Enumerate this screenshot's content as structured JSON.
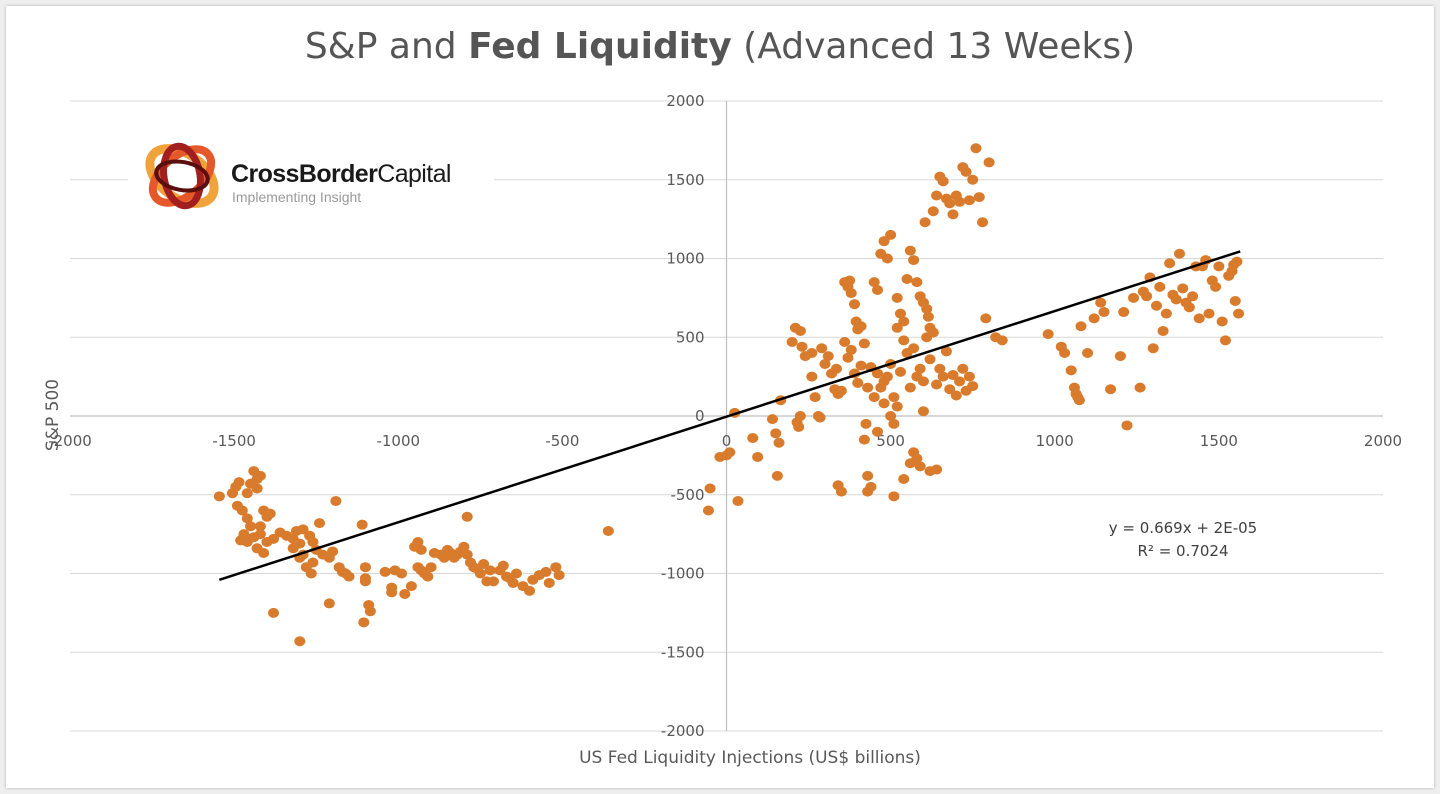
{
  "chart_data": {
    "type": "scatter",
    "title_prefix": "S&P and ",
    "title_bold": "Fed Liquidity",
    "title_suffix": " (Advanced 13 Weeks)",
    "xlabel": "US Fed Liquidity Injections (US$ billions)",
    "ylabel": "S&P 500",
    "xlim": [
      -2000,
      2000
    ],
    "ylim": [
      -2000,
      2000
    ],
    "x_ticks": [
      "-2000",
      "-1500",
      "-1000",
      "-500",
      "0",
      "500",
      "1000",
      "1500",
      "2000"
    ],
    "y_ticks": [
      "2000",
      "1500",
      "1000",
      "500",
      "0",
      "-500",
      "-1000",
      "-1500",
      "-2000"
    ],
    "grid": true,
    "point_color": "#d97b2d",
    "trendline": {
      "x": [
        -1545,
        1565
      ],
      "y": [
        -1040,
        1045
      ],
      "equation": "y = 0.669x + 2E-05",
      "r_squared": "R² = 0.7024"
    },
    "points": [
      [
        -1545,
        -510
      ],
      [
        -1505,
        -490
      ],
      [
        -1495,
        -450
      ],
      [
        -1485,
        -420
      ],
      [
        -1490,
        -570
      ],
      [
        -1475,
        -600
      ],
      [
        -1460,
        -490
      ],
      [
        -1450,
        -430
      ],
      [
        -1430,
        -400
      ],
      [
        -1420,
        -380
      ],
      [
        -1440,
        -350
      ],
      [
        -1430,
        -460
      ],
      [
        -1460,
        -650
      ],
      [
        -1450,
        -700
      ],
      [
        -1470,
        -750
      ],
      [
        -1480,
        -790
      ],
      [
        -1460,
        -800
      ],
      [
        -1440,
        -770
      ],
      [
        -1420,
        -750
      ],
      [
        -1430,
        -840
      ],
      [
        -1410,
        -870
      ],
      [
        -1400,
        -800
      ],
      [
        -1380,
        -780
      ],
      [
        -1400,
        -640
      ],
      [
        -1410,
        -600
      ],
      [
        -1390,
        -620
      ],
      [
        -1420,
        -700
      ],
      [
        -1360,
        -740
      ],
      [
        -1340,
        -760
      ],
      [
        -1320,
        -780
      ],
      [
        -1310,
        -730
      ],
      [
        -1300,
        -810
      ],
      [
        -1320,
        -840
      ],
      [
        -1290,
        -880
      ],
      [
        -1300,
        -900
      ],
      [
        -1290,
        -720
      ],
      [
        -1270,
        -760
      ],
      [
        -1260,
        -800
      ],
      [
        -1250,
        -850
      ],
      [
        -1260,
        -930
      ],
      [
        -1265,
        -1000
      ],
      [
        -1280,
        -960
      ],
      [
        -1240,
        -680
      ],
      [
        -1230,
        -880
      ],
      [
        -1210,
        -900
      ],
      [
        -1200,
        -860
      ],
      [
        -1190,
        -540
      ],
      [
        -1180,
        -960
      ],
      [
        -1170,
        -990
      ],
      [
        -1160,
        -1000
      ],
      [
        -1150,
        -1020
      ],
      [
        -1110,
        -690
      ],
      [
        -1100,
        -960
      ],
      [
        -1100,
        -1030
      ],
      [
        -1100,
        -1050
      ],
      [
        -1090,
        -1200
      ],
      [
        -1085,
        -1240
      ],
      [
        -1105,
        -1310
      ],
      [
        -1040,
        -990
      ],
      [
        -1020,
        -1090
      ],
      [
        -1020,
        -1120
      ],
      [
        -1010,
        -980
      ],
      [
        -990,
        -1000
      ],
      [
        -980,
        -1130
      ],
      [
        -960,
        -1080
      ],
      [
        -950,
        -830
      ],
      [
        -940,
        -800
      ],
      [
        -930,
        -850
      ],
      [
        -940,
        -960
      ],
      [
        -930,
        -980
      ],
      [
        -920,
        -1000
      ],
      [
        -910,
        -1020
      ],
      [
        -900,
        -960
      ],
      [
        -890,
        -870
      ],
      [
        -870,
        -880
      ],
      [
        -860,
        -900
      ],
      [
        -850,
        -850
      ],
      [
        -840,
        -870
      ],
      [
        -830,
        -900
      ],
      [
        -820,
        -880
      ],
      [
        -810,
        -860
      ],
      [
        -800,
        -830
      ],
      [
        -790,
        -880
      ],
      [
        -780,
        -930
      ],
      [
        -770,
        -960
      ],
      [
        -760,
        -970
      ],
      [
        -750,
        -1000
      ],
      [
        -740,
        -940
      ],
      [
        -730,
        -1050
      ],
      [
        -720,
        -980
      ],
      [
        -710,
        -1050
      ],
      [
        -690,
        -980
      ],
      [
        -680,
        -950
      ],
      [
        -670,
        -1020
      ],
      [
        -660,
        -1030
      ],
      [
        -650,
        -1060
      ],
      [
        -640,
        -1000
      ],
      [
        -620,
        -1080
      ],
      [
        -600,
        -1110
      ],
      [
        -590,
        -1040
      ],
      [
        -570,
        -1010
      ],
      [
        -550,
        -990
      ],
      [
        -540,
        -1060
      ],
      [
        -520,
        -960
      ],
      [
        -510,
        -1010
      ],
      [
        -790,
        -640
      ],
      [
        -1210,
        -1190
      ],
      [
        -1380,
        -1250
      ],
      [
        -1300,
        -1430
      ],
      [
        -360,
        -730
      ],
      [
        -55,
        -600
      ],
      [
        -50,
        -460
      ],
      [
        -20,
        -260
      ],
      [
        0,
        -250
      ],
      [
        10,
        -230
      ],
      [
        25,
        20
      ],
      [
        35,
        -540
      ],
      [
        80,
        -140
      ],
      [
        95,
        -260
      ],
      [
        140,
        -20
      ],
      [
        150,
        -110
      ],
      [
        155,
        -380
      ],
      [
        160,
        -170
      ],
      [
        165,
        100
      ],
      [
        200,
        470
      ],
      [
        210,
        560
      ],
      [
        215,
        -40
      ],
      [
        220,
        -70
      ],
      [
        225,
        540
      ],
      [
        225,
        0
      ],
      [
        230,
        440
      ],
      [
        240,
        380
      ],
      [
        260,
        400
      ],
      [
        260,
        250
      ],
      [
        270,
        120
      ],
      [
        280,
        0
      ],
      [
        285,
        -10
      ],
      [
        290,
        430
      ],
      [
        300,
        330
      ],
      [
        310,
        380
      ],
      [
        320,
        270
      ],
      [
        330,
        170
      ],
      [
        340,
        140
      ],
      [
        350,
        160
      ],
      [
        360,
        470
      ],
      [
        370,
        370
      ],
      [
        380,
        420
      ],
      [
        390,
        270
      ],
      [
        400,
        210
      ],
      [
        410,
        320
      ],
      [
        420,
        460
      ],
      [
        430,
        180
      ],
      [
        440,
        310
      ],
      [
        450,
        120
      ],
      [
        460,
        270
      ],
      [
        470,
        180
      ],
      [
        480,
        220
      ],
      [
        490,
        250
      ],
      [
        500,
        330
      ],
      [
        510,
        120
      ],
      [
        520,
        560
      ],
      [
        530,
        280
      ],
      [
        540,
        480
      ],
      [
        550,
        400
      ],
      [
        560,
        180
      ],
      [
        570,
        430
      ],
      [
        580,
        250
      ],
      [
        590,
        300
      ],
      [
        600,
        220
      ],
      [
        610,
        500
      ],
      [
        620,
        360
      ],
      [
        630,
        530
      ],
      [
        640,
        200
      ],
      [
        650,
        300
      ],
      [
        660,
        250
      ],
      [
        670,
        410
      ],
      [
        680,
        170
      ],
      [
        690,
        260
      ],
      [
        700,
        130
      ],
      [
        710,
        220
      ],
      [
        720,
        300
      ],
      [
        730,
        160
      ],
      [
        740,
        250
      ],
      [
        750,
        190
      ],
      [
        335,
        300
      ],
      [
        340,
        -440
      ],
      [
        350,
        -480
      ],
      [
        360,
        850
      ],
      [
        370,
        820
      ],
      [
        375,
        860
      ],
      [
        380,
        780
      ],
      [
        390,
        710
      ],
      [
        395,
        600
      ],
      [
        400,
        550
      ],
      [
        410,
        570
      ],
      [
        420,
        -150
      ],
      [
        425,
        -50
      ],
      [
        430,
        -380
      ],
      [
        440,
        -450
      ],
      [
        450,
        850
      ],
      [
        460,
        800
      ],
      [
        470,
        1030
      ],
      [
        480,
        1110
      ],
      [
        490,
        1000
      ],
      [
        500,
        1150
      ],
      [
        510,
        -510
      ],
      [
        520,
        750
      ],
      [
        530,
        650
      ],
      [
        540,
        600
      ],
      [
        550,
        870
      ],
      [
        560,
        1050
      ],
      [
        570,
        990
      ],
      [
        580,
        850
      ],
      [
        590,
        760
      ],
      [
        600,
        720
      ],
      [
        605,
        1230
      ],
      [
        610,
        680
      ],
      [
        615,
        630
      ],
      [
        620,
        560
      ],
      [
        630,
        1300
      ],
      [
        640,
        1400
      ],
      [
        650,
        1520
      ],
      [
        660,
        1490
      ],
      [
        670,
        1380
      ],
      [
        680,
        1350
      ],
      [
        690,
        1280
      ],
      [
        700,
        1400
      ],
      [
        710,
        1360
      ],
      [
        720,
        1580
      ],
      [
        730,
        1550
      ],
      [
        740,
        1370
      ],
      [
        750,
        1500
      ],
      [
        760,
        1700
      ],
      [
        770,
        1390
      ],
      [
        780,
        1230
      ],
      [
        790,
        620
      ],
      [
        800,
        1610
      ],
      [
        430,
        -480
      ],
      [
        460,
        -100
      ],
      [
        480,
        80
      ],
      [
        500,
        0
      ],
      [
        510,
        -50
      ],
      [
        520,
        60
      ],
      [
        540,
        -400
      ],
      [
        560,
        -300
      ],
      [
        570,
        -230
      ],
      [
        580,
        -270
      ],
      [
        590,
        -320
      ],
      [
        600,
        30
      ],
      [
        620,
        -350
      ],
      [
        640,
        -340
      ],
      [
        820,
        500
      ],
      [
        840,
        480
      ],
      [
        980,
        520
      ],
      [
        1020,
        440
      ],
      [
        1030,
        400
      ],
      [
        1050,
        290
      ],
      [
        1060,
        180
      ],
      [
        1065,
        140
      ],
      [
        1070,
        120
      ],
      [
        1075,
        100
      ],
      [
        1080,
        570
      ],
      [
        1100,
        400
      ],
      [
        1120,
        620
      ],
      [
        1140,
        720
      ],
      [
        1150,
        660
      ],
      [
        1170,
        170
      ],
      [
        1200,
        380
      ],
      [
        1210,
        660
      ],
      [
        1220,
        -60
      ],
      [
        1240,
        750
      ],
      [
        1260,
        180
      ],
      [
        1270,
        790
      ],
      [
        1280,
        760
      ],
      [
        1290,
        880
      ],
      [
        1300,
        430
      ],
      [
        1310,
        700
      ],
      [
        1320,
        820
      ],
      [
        1330,
        540
      ],
      [
        1340,
        650
      ],
      [
        1350,
        970
      ],
      [
        1360,
        770
      ],
      [
        1370,
        740
      ],
      [
        1380,
        1030
      ],
      [
        1390,
        810
      ],
      [
        1400,
        720
      ],
      [
        1410,
        690
      ],
      [
        1420,
        760
      ],
      [
        1430,
        950
      ],
      [
        1440,
        620
      ],
      [
        1450,
        950
      ],
      [
        1460,
        990
      ],
      [
        1470,
        650
      ],
      [
        1480,
        860
      ],
      [
        1490,
        820
      ],
      [
        1500,
        950
      ],
      [
        1510,
        600
      ],
      [
        1520,
        480
      ],
      [
        1530,
        890
      ],
      [
        1540,
        920
      ],
      [
        1545,
        960
      ],
      [
        1550,
        730
      ],
      [
        1560,
        650
      ],
      [
        1555,
        980
      ]
    ]
  },
  "logo": {
    "name_bold": "CrossBorder",
    "name_regular": "Capital",
    "tagline": "Implementing Insight"
  }
}
